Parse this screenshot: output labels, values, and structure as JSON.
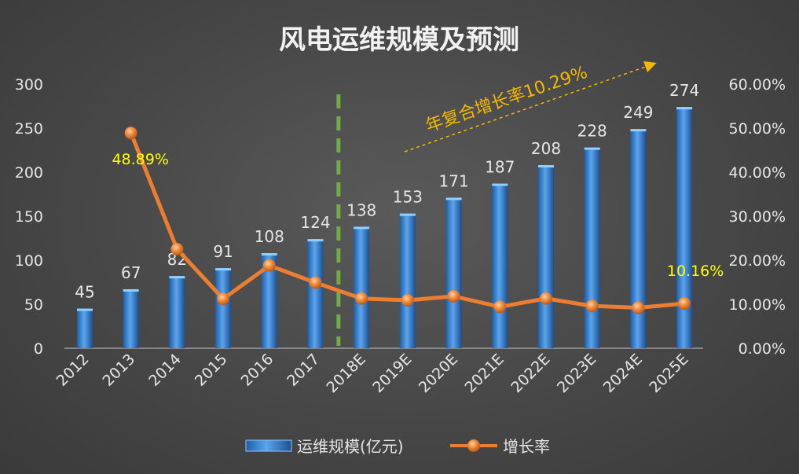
{
  "chart_data": {
    "type": "bar",
    "title": "风电运维规模及预测",
    "categories": [
      "2012",
      "2013",
      "2014",
      "2015",
      "2016",
      "2017",
      "2018E",
      "2019E",
      "2020E",
      "2021E",
      "2022E",
      "2023E",
      "2024E",
      "2025E"
    ],
    "series": [
      {
        "name": "运维规模(亿元)",
        "type": "bar",
        "axis": "left",
        "color": "#2e75c8",
        "values": [
          45,
          67,
          82,
          91,
          108,
          124,
          138,
          153,
          171,
          187,
          208,
          228,
          249,
          274
        ]
      },
      {
        "name": "增长率",
        "type": "line",
        "axis": "right",
        "color": "#ed7d31",
        "values": [
          null,
          48.89,
          22.5,
          11.2,
          18.8,
          14.9,
          11.3,
          10.9,
          11.8,
          9.4,
          11.3,
          9.6,
          9.2,
          10.16
        ]
      }
    ],
    "y_left": {
      "min": 0,
      "max": 300,
      "ticks": [
        "0",
        "50",
        "100",
        "150",
        "200",
        "250",
        "300"
      ]
    },
    "y_right": {
      "min": 0,
      "max": 60,
      "ticks": [
        "0.00%",
        "10.00%",
        "20.00%",
        "30.00%",
        "40.00%",
        "50.00%",
        "60.00%"
      ]
    },
    "point_labels": [
      {
        "category": "2013",
        "text": "48.89%"
      },
      {
        "category": "2025E",
        "text": "10.16%"
      }
    ],
    "annotation": {
      "text": "年复合增长率10.29%",
      "color": "#f5b800"
    },
    "divider": {
      "after_category": "2017",
      "color": "#70ad47",
      "style": "dashed"
    },
    "legend": {
      "position": "bottom"
    },
    "grid": false
  }
}
